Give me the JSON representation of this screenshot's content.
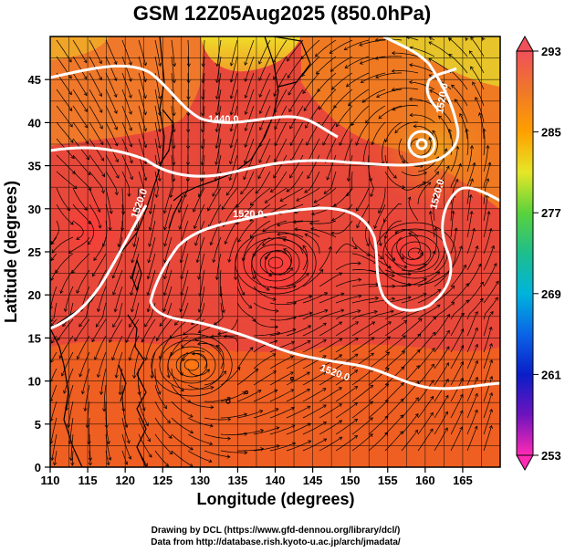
{
  "title": "GSM 12Z05Aug2025 (850.0hPa)",
  "x_axis_label": "Longitude (degrees)",
  "y_axis_label": "Latitude  (degrees)",
  "x_ticks": [
    "110",
    "115",
    "120",
    "125",
    "130",
    "135",
    "140",
    "145",
    "150",
    "155",
    "160",
    "165"
  ],
  "y_ticks": [
    "0",
    "5",
    "10",
    "15",
    "20",
    "25",
    "30",
    "35",
    "40",
    "45"
  ],
  "colorbar_ticks": [
    "293",
    "285",
    "277",
    "269",
    "261",
    "253"
  ],
  "credit_line1": "Drawing by DCL (https://www.gfd-dennou.org/library/dcl/)",
  "credit_line2": "Data from http://database.rish.kyoto-u.ac.jp/arch/jmadata/",
  "contour_labels": [
    "1440.0",
    "1520.0",
    "1520.0",
    "1520.0",
    "1520.0",
    "1520.0"
  ],
  "map": {
    "lon_range": [
      110,
      170
    ],
    "lat_range": [
      0,
      50
    ],
    "field": "temperature (K), shaded",
    "contours": "geopotential height (m), white, interval 80",
    "vectors": "wind streamlines"
  },
  "colors": {
    "warm_red": "#e8483a",
    "orange": "#f0641e",
    "yellow": "#e8e82a",
    "contour": "#ffffff"
  },
  "colorbar_stops": [
    {
      "value": 293,
      "color": "#f0505a"
    },
    {
      "value": 289,
      "color": "#f07828"
    },
    {
      "value": 285,
      "color": "#ffa000"
    },
    {
      "value": 281,
      "color": "#e6e628"
    },
    {
      "value": 277,
      "color": "#5ad23c"
    },
    {
      "value": 273,
      "color": "#1ebe8c"
    },
    {
      "value": 269,
      "color": "#00b4dc"
    },
    {
      "value": 265,
      "color": "#0a64e6"
    },
    {
      "value": 261,
      "color": "#0a1ec8"
    },
    {
      "value": 257,
      "color": "#6e14be"
    },
    {
      "value": 253,
      "color": "#ff2ab4"
    }
  ]
}
